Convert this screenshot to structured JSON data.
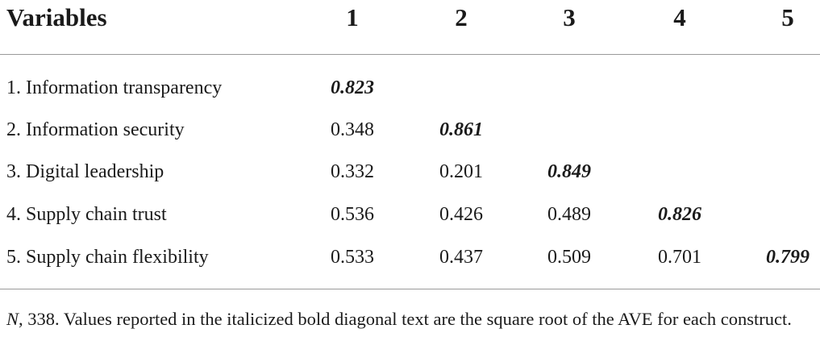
{
  "table": {
    "header": [
      "Variables",
      "1",
      "2",
      "3",
      "4",
      "5"
    ],
    "rows": [
      {
        "label": "1. Information transparency",
        "values": [
          0.823
        ]
      },
      {
        "label": "2. Information security",
        "values": [
          0.348,
          0.861
        ]
      },
      {
        "label": "3. Digital leadership",
        "values": [
          0.332,
          0.201,
          0.849
        ]
      },
      {
        "label": "4. Supply chain trust",
        "values": [
          0.536,
          0.426,
          0.489,
          0.826
        ]
      },
      {
        "label": "5. Supply chain flexibility",
        "values": [
          0.533,
          0.437,
          0.509,
          0.701,
          0.799
        ]
      }
    ]
  },
  "note": {
    "n": "N",
    "text": ", 338. Values reported in the italicized bold diagonal text are the square root of the AVE for each construct."
  }
}
